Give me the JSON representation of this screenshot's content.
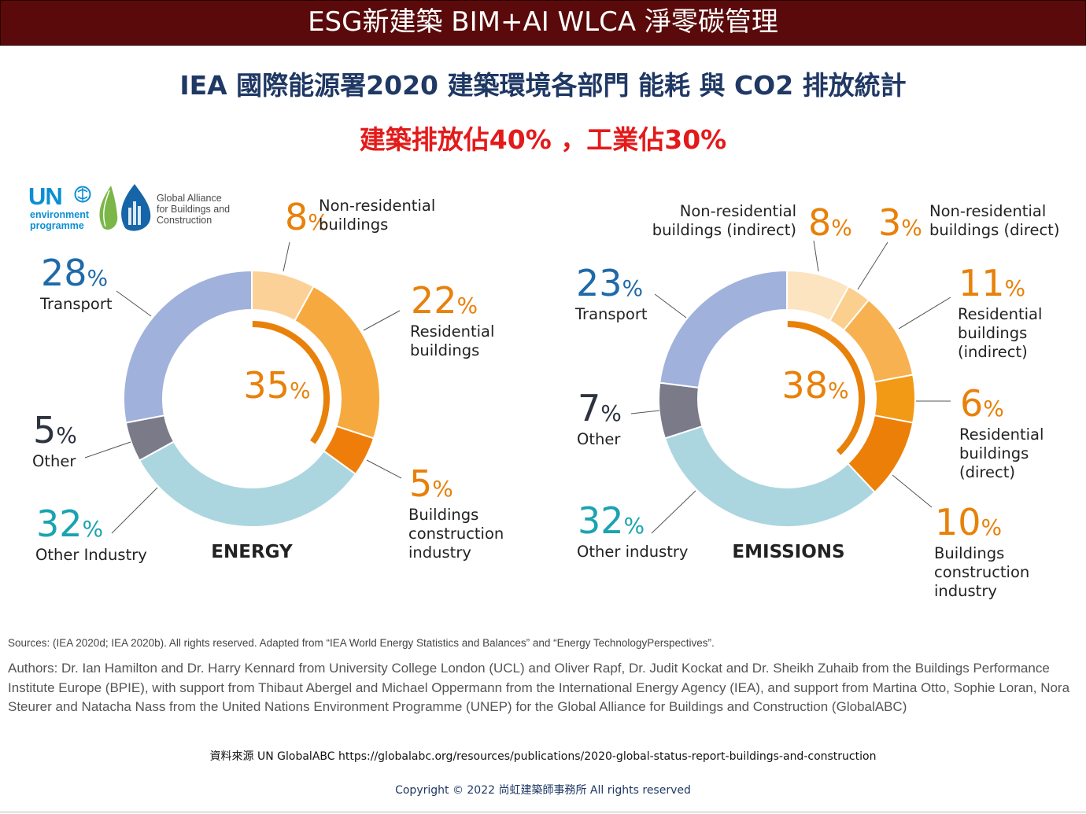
{
  "header": {
    "banner": "ESG新建築 BIM+AI WLCA 淨零碳管理",
    "title": "IEA 國際能源署2020  建築環境各部門 能耗 與 CO2 排放統計",
    "subtitle": "建築排放佔40% ，工業佔30%"
  },
  "logo": {
    "un": "UN",
    "un_sub": [
      "environment",
      "programme"
    ],
    "alliance": [
      "Global Alliance",
      "for Buildings and",
      "Construction"
    ]
  },
  "colors": {
    "accent_orange": "#e8810a",
    "value_blue": "#1f6aa8",
    "value_teal": "#1aa3b0",
    "value_gray": "#2e3340"
  },
  "chart_data": [
    {
      "type": "pie",
      "title": "ENERGY",
      "center_value": "35%",
      "slices": [
        {
          "label": "Non-residential buildings",
          "value": 8,
          "color": "#fcd198",
          "label_color": "#e8810a"
        },
        {
          "label": "Residential buildings",
          "value": 22,
          "color": "#f6a93e",
          "label_color": "#e8810a"
        },
        {
          "label": "Buildings construction industry",
          "value": 5,
          "color": "#ef7d0a",
          "label_color": "#e8810a"
        },
        {
          "label": "Other Industry",
          "value": 32,
          "color": "#abd6df",
          "label_color": "#1aa3b0"
        },
        {
          "label": "Other",
          "value": 5,
          "color": "#7a7a88",
          "label_color": "#2e3340"
        },
        {
          "label": "Transport",
          "value": 28,
          "color": "#a0b1dc",
          "label_color": "#1f6aa8"
        }
      ]
    },
    {
      "type": "pie",
      "title": "EMISSIONS",
      "center_value": "38%",
      "slices": [
        {
          "label": "Non-residential buildings (indirect)",
          "value": 8,
          "color": "#fde4c0",
          "label_color": "#e8810a"
        },
        {
          "label": "Non-residential buildings (direct)",
          "value": 3,
          "color": "#fbcf8e",
          "label_color": "#e8810a"
        },
        {
          "label": "Residential buildings (indirect)",
          "value": 11,
          "color": "#f8b150",
          "label_color": "#e8810a"
        },
        {
          "label": "Residential buildings (direct)",
          "value": 6,
          "color": "#f29a16",
          "label_color": "#e8810a"
        },
        {
          "label": "Buildings construction industry",
          "value": 10,
          "color": "#ec7f08",
          "label_color": "#e8810a"
        },
        {
          "label": "Other industry",
          "value": 32,
          "color": "#abd6df",
          "label_color": "#1aa3b0"
        },
        {
          "label": "Other",
          "value": 7,
          "color": "#7a7a88",
          "label_color": "#2e3340"
        },
        {
          "label": "Transport",
          "value": 23,
          "color": "#a0b1dc",
          "label_color": "#1f6aa8"
        }
      ]
    }
  ],
  "footer": {
    "sources": "Sources: (IEA 2020d; IEA 2020b). All rights reserved. Adapted from “IEA World Energy Statistics and Balances” and “Energy TechnologyPerspectives”.",
    "authors": "Authors: Dr. Ian Hamilton and Dr. Harry Kennard from University College London (UCL) and Oliver Rapf, Dr. Judit Kockat and Dr. Sheikh Zuhaib from the Buildings Performance Institute Europe (BPIE), with support from Thibaut Abergel and Michael Oppermann from the International Energy Agency (IEA), and support from Martina Otto, Sophie Loran, Nora Steurer and Natacha Nass from the United Nations Environment Programme (UNEP) for the Global Alliance for Buildings and Construction (GlobalABC)",
    "reference": "資料來源 UN GlobalABC https://globalabc.org/resources/publications/2020-global-status-report-buildings-and-construction",
    "copyright": "Copyright © 2022 尚虹建築師事務所 All rights reserved"
  }
}
